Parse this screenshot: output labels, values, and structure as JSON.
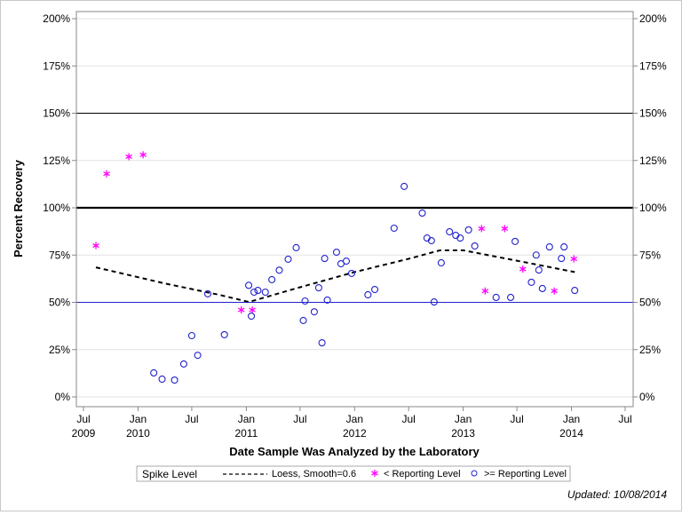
{
  "chart_data": {
    "type": "scatter",
    "title": "",
    "xlabel": "Date Sample Was Analyzed by the Laboratory",
    "ylabel": "Percent Recovery",
    "xlim": [
      "2009-06-01",
      "2014-08-01"
    ],
    "ylim": [
      0,
      200
    ],
    "y_ticks": [
      "0%",
      "25%",
      "50%",
      "75%",
      "100%",
      "125%",
      "150%",
      "175%",
      "200%"
    ],
    "y_tick_values": [
      0,
      25,
      50,
      75,
      100,
      125,
      150,
      175,
      200
    ],
    "x_ticks": [
      {
        "date": "2009-07-01",
        "month": "Jul",
        "year": "2009"
      },
      {
        "date": "2010-01-01",
        "month": "Jan",
        "year": "2010"
      },
      {
        "date": "2010-07-01",
        "month": "Jul",
        "year": ""
      },
      {
        "date": "2011-01-01",
        "month": "Jan",
        "year": "2011"
      },
      {
        "date": "2011-07-01",
        "month": "Jul",
        "year": ""
      },
      {
        "date": "2012-01-01",
        "month": "Jan",
        "year": "2012"
      },
      {
        "date": "2012-07-01",
        "month": "Jul",
        "year": ""
      },
      {
        "date": "2013-01-01",
        "month": "Jan",
        "year": "2013"
      },
      {
        "date": "2013-07-01",
        "month": "Jul",
        "year": ""
      },
      {
        "date": "2014-01-01",
        "month": "Jan",
        "year": "2014"
      },
      {
        "date": "2014-07-01",
        "month": "Jul",
        "year": ""
      }
    ],
    "grid": true,
    "reference_lines": [
      {
        "y": 150,
        "color": "#000000",
        "style": "thin"
      },
      {
        "y": 100,
        "color": "#000000",
        "style": "thick"
      },
      {
        "y": 50,
        "color": "#2222cc",
        "style": "thin"
      }
    ],
    "legend_placement": "bottom",
    "legend_title": "Spike Level",
    "series": [
      {
        "name": "Loess, Smooth=0.6",
        "type": "line",
        "color": "#000000",
        "style": "dashed",
        "points": [
          [
            "2009-08-12",
            68.5
          ],
          [
            "2010-04-01",
            60
          ],
          [
            "2010-10-01",
            54
          ],
          [
            "2011-01-10",
            50.2
          ],
          [
            "2011-07-01",
            58
          ],
          [
            "2012-01-01",
            66
          ],
          [
            "2012-07-01",
            73
          ],
          [
            "2012-10-15",
            77.5
          ],
          [
            "2013-01-01",
            77.5
          ],
          [
            "2013-07-01",
            72
          ],
          [
            "2014-01-12",
            66
          ]
        ]
      },
      {
        "name": "< Reporting Level",
        "type": "scatter",
        "marker": "asterisk",
        "color": "#ff00ff",
        "points": [
          [
            "2009-08-12",
            80
          ],
          [
            "2009-09-17",
            118
          ],
          [
            "2009-12-01",
            127
          ],
          [
            "2010-01-18",
            128
          ],
          [
            "2010-12-15",
            46
          ],
          [
            "2011-01-21",
            46
          ],
          [
            "2013-03-04",
            89
          ],
          [
            "2013-05-21",
            89
          ],
          [
            "2013-03-16",
            56
          ],
          [
            "2013-07-21",
            67.6
          ],
          [
            "2013-11-04",
            56
          ],
          [
            "2014-01-09",
            73
          ]
        ]
      },
      {
        "name": ">= Reporting Level",
        "type": "scatter",
        "marker": "circle",
        "color": "#2222cc",
        "points": [
          [
            "2010-02-23",
            12.7
          ],
          [
            "2010-03-23",
            9.4
          ],
          [
            "2010-05-04",
            8.9
          ],
          [
            "2010-06-04",
            17.4
          ],
          [
            "2010-07-01",
            32.4
          ],
          [
            "2010-07-21",
            22
          ],
          [
            "2010-08-24",
            54.5
          ],
          [
            "2010-10-19",
            32.9
          ],
          [
            "2011-01-09",
            59
          ],
          [
            "2011-01-18",
            42.7
          ],
          [
            "2011-01-27",
            55.4
          ],
          [
            "2011-02-09",
            56.3
          ],
          [
            "2011-03-06",
            55.4
          ],
          [
            "2011-03-28",
            62
          ],
          [
            "2011-04-22",
            67
          ],
          [
            "2011-05-22",
            72.8
          ],
          [
            "2011-06-18",
            78.9
          ],
          [
            "2011-07-12",
            40.4
          ],
          [
            "2011-07-18",
            50.7
          ],
          [
            "2011-08-18",
            45
          ],
          [
            "2011-09-02",
            57.7
          ],
          [
            "2011-09-13",
            28.6
          ],
          [
            "2011-09-22",
            73.2
          ],
          [
            "2011-10-01",
            51.2
          ],
          [
            "2011-11-01",
            76.5
          ],
          [
            "2011-11-16",
            70.4
          ],
          [
            "2011-12-04",
            71.8
          ],
          [
            "2011-12-22",
            65.3
          ],
          [
            "2012-02-15",
            54
          ],
          [
            "2012-03-09",
            56.8
          ],
          [
            "2012-05-13",
            89.2
          ],
          [
            "2012-06-16",
            111.3
          ],
          [
            "2012-08-16",
            97.2
          ],
          [
            "2012-09-01",
            84
          ],
          [
            "2012-09-16",
            82.6
          ],
          [
            "2012-09-25",
            50.2
          ],
          [
            "2012-10-19",
            70.9
          ],
          [
            "2012-11-16",
            87.3
          ],
          [
            "2012-12-07",
            85.4
          ],
          [
            "2012-12-22",
            84
          ],
          [
            "2013-01-19",
            88.3
          ],
          [
            "2013-02-09",
            79.8
          ],
          [
            "2013-04-22",
            52.6
          ],
          [
            "2013-06-10",
            52.6
          ],
          [
            "2013-06-25",
            82.2
          ],
          [
            "2013-08-19",
            60.6
          ],
          [
            "2013-09-04",
            75
          ],
          [
            "2013-09-13",
            67.1
          ],
          [
            "2013-09-25",
            57.3
          ],
          [
            "2013-10-19",
            79.3
          ],
          [
            "2013-11-28",
            73.2
          ],
          [
            "2013-12-07",
            79.3
          ],
          [
            "2014-01-12",
            56.3
          ]
        ]
      }
    ]
  },
  "footer": {
    "updated": "Updated: 10/08/2014"
  }
}
